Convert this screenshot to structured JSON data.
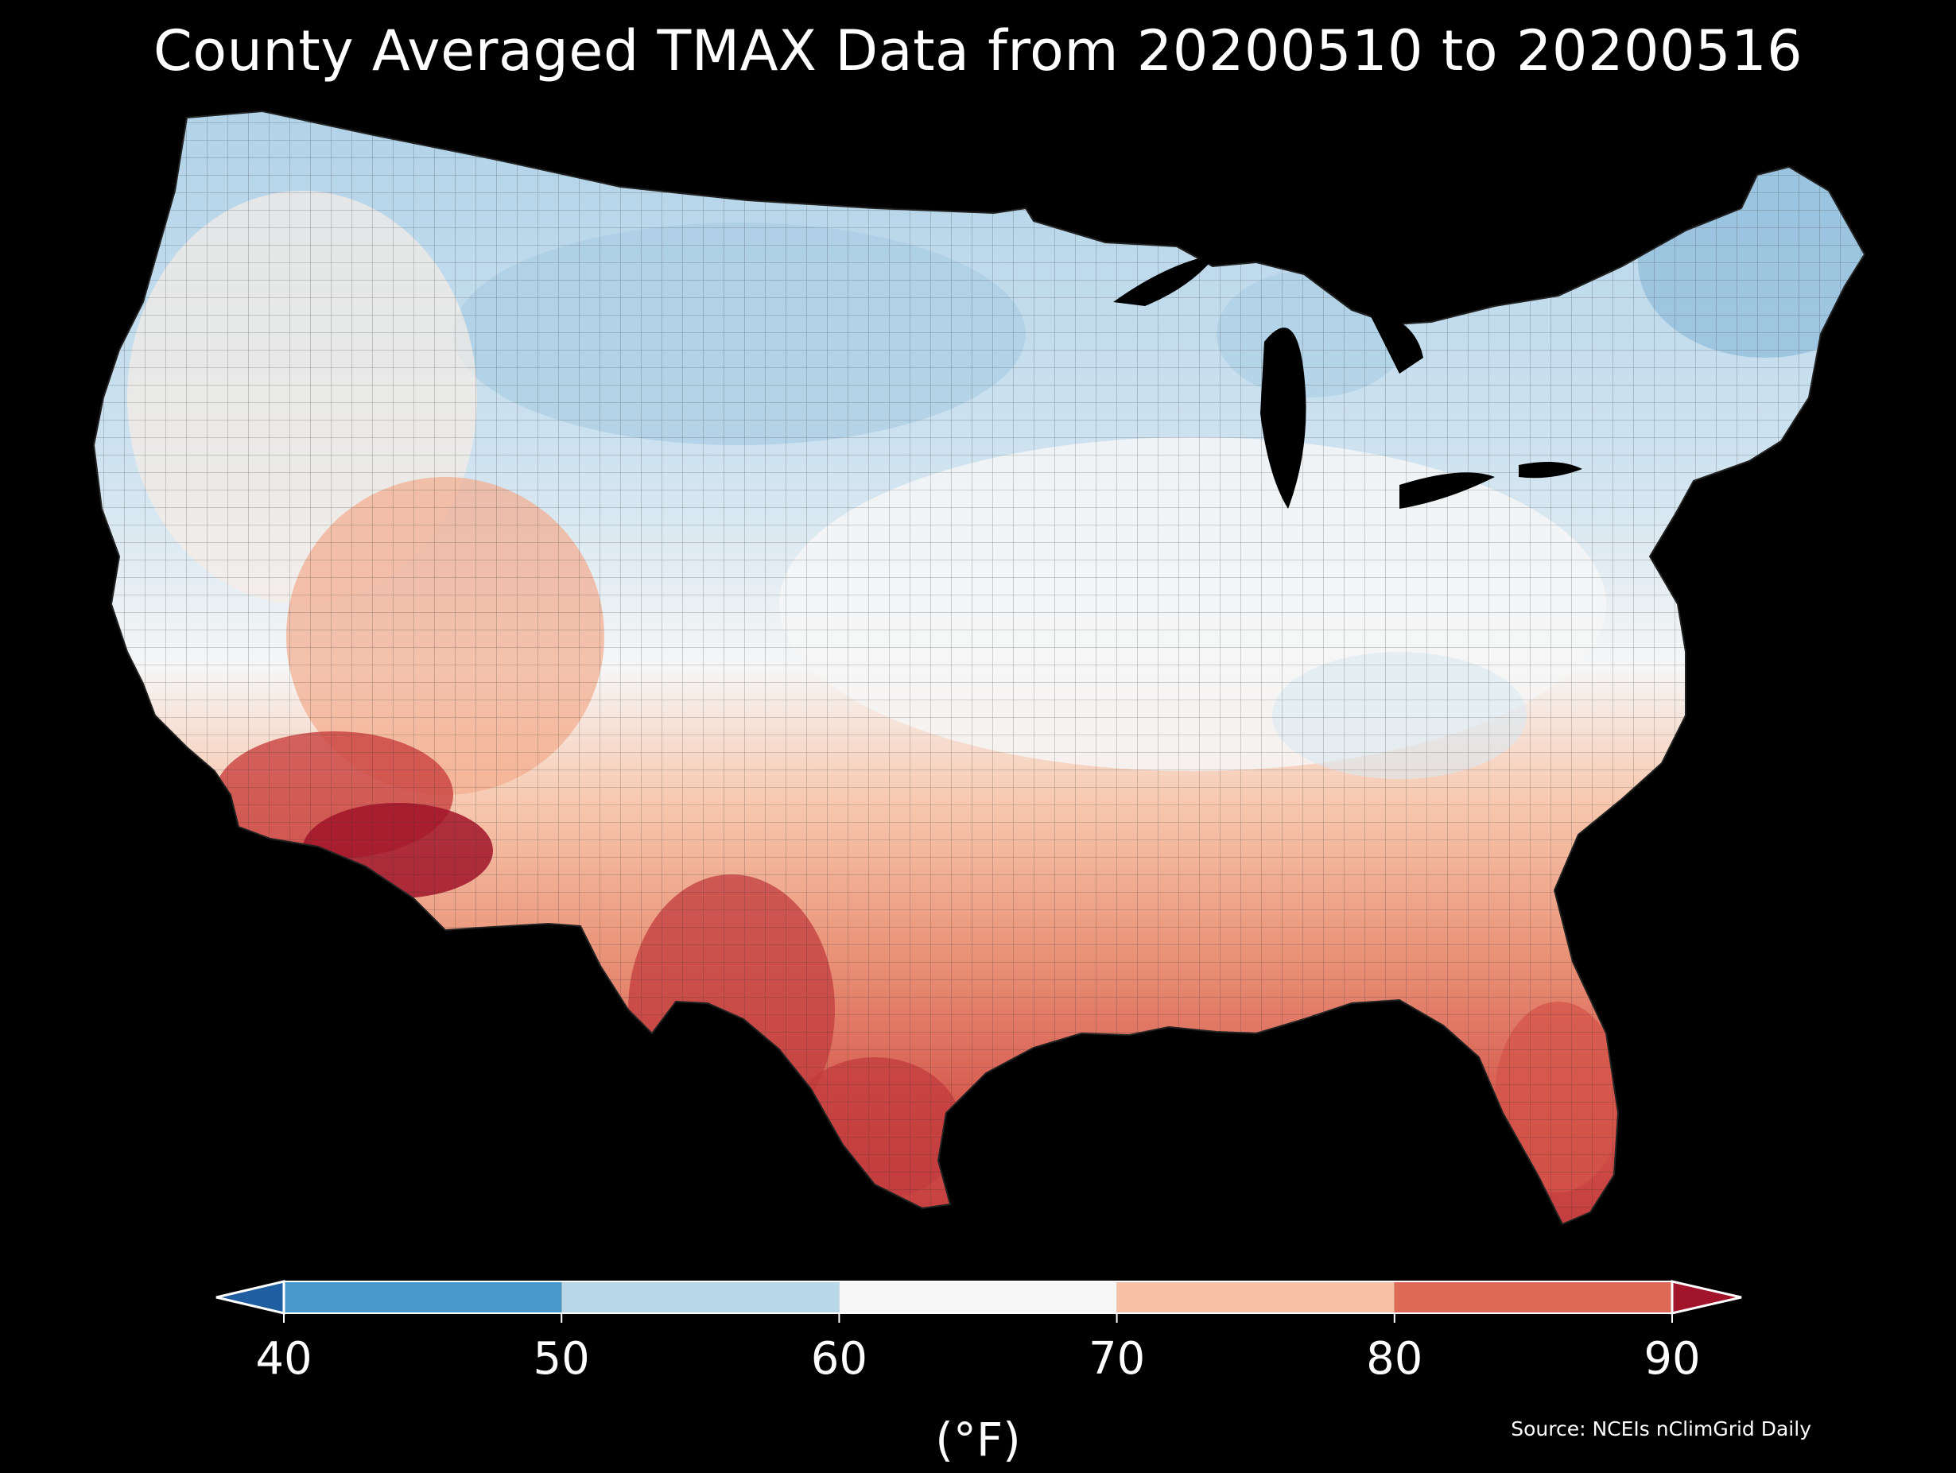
{
  "title": "County Averaged TMAX Data from 20200510 to 20200516",
  "colorbar": {
    "min": 40,
    "max": 90,
    "extend": "both",
    "ticks": [
      "40",
      "50",
      "60",
      "70",
      "80",
      "90"
    ],
    "bins": [
      {
        "from": 40,
        "to": 50,
        "color": "#4a98c9"
      },
      {
        "from": 50,
        "to": 60,
        "color": "#b8d8ea"
      },
      {
        "from": 60,
        "to": 70,
        "color": "#f6f6f6"
      },
      {
        "from": 70,
        "to": 80,
        "color": "#f8c0a4"
      },
      {
        "from": 80,
        "to": 90,
        "color": "#dd6a57"
      }
    ],
    "under_color": "#1f5ea0",
    "over_color": "#a11429",
    "unit": "(°F)"
  },
  "source": "Source: NCEIs nClimGrid Daily",
  "colors": {
    "background": "#000000",
    "text": "#ffffff",
    "county_lines": "#333333"
  }
}
